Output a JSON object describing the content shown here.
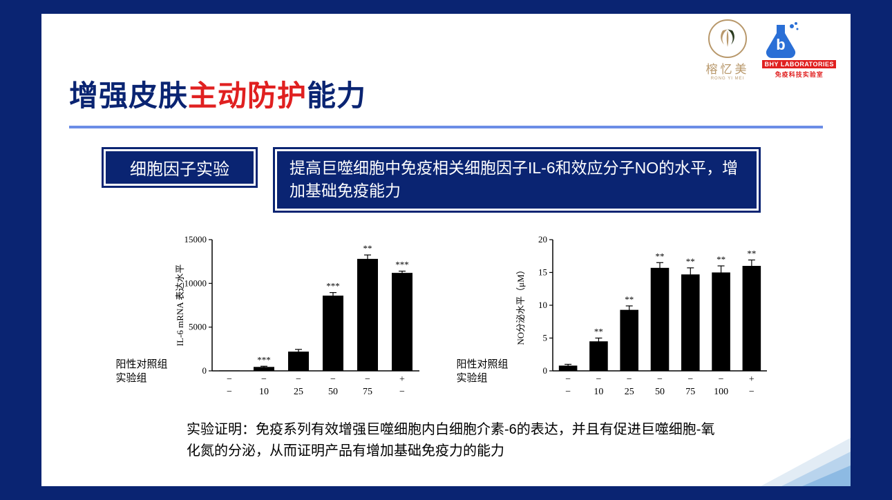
{
  "logos": {
    "rym": {
      "name": "榕忆美",
      "pinyin": "RONG YI MEI"
    },
    "bhy": {
      "lab": "BHY LABORATORIES",
      "sub": "免疫科技实验室"
    }
  },
  "title": {
    "part1": "增强皮肤",
    "part2": "主动防护",
    "part3": "能力"
  },
  "box_small": "细胞因子实验",
  "box_big": "提高巨噬细胞中免疫相关细胞因子IL-6和效应分子NO的水平，增加基础免疫能力",
  "chart_labels": {
    "l1": "阳性对照组",
    "l2": "实验组"
  },
  "chart1": {
    "type": "bar",
    "ylabel": "IL-6 mRNA 表达水平",
    "ylim": [
      0,
      15000
    ],
    "yticks": [
      0,
      5000,
      10000,
      15000
    ],
    "categories": [
      "−",
      "10",
      "25",
      "50",
      "75",
      "+/−"
    ],
    "row1": [
      "−",
      "−",
      "−",
      "−",
      "−",
      "+"
    ],
    "row2": [
      "−",
      "10",
      "25",
      "50",
      "75",
      "−"
    ],
    "values": [
      50,
      450,
      2200,
      8600,
      12800,
      11200
    ],
    "errors": [
      0,
      80,
      250,
      350,
      450,
      200
    ],
    "sig": [
      "",
      "***",
      "",
      "***",
      "**",
      "***"
    ],
    "bar_color": "#000000",
    "axis_color": "#000000",
    "background": "#ffffff",
    "bar_width": 0.6
  },
  "chart2": {
    "type": "bar",
    "ylabel": "NO分泌水平（μM）",
    "ylim": [
      0,
      20
    ],
    "yticks": [
      0,
      5,
      10,
      15,
      20
    ],
    "categories": [
      "−",
      "10",
      "25",
      "50",
      "75",
      "100",
      "+/−"
    ],
    "row1": [
      "−",
      "−",
      "−",
      "−",
      "−",
      "−",
      "+"
    ],
    "row2": [
      "−",
      "10",
      "25",
      "50",
      "75",
      "100",
      "−"
    ],
    "values": [
      0.8,
      4.5,
      9.3,
      15.7,
      14.7,
      15.0,
      16.0
    ],
    "errors": [
      0.2,
      0.5,
      0.6,
      0.8,
      1.0,
      1.0,
      0.9
    ],
    "sig": [
      "",
      "**",
      "**",
      "**",
      "**",
      "**",
      "**"
    ],
    "bar_color": "#000000",
    "axis_color": "#000000",
    "background": "#ffffff",
    "bar_width": 0.6
  },
  "desc": "实验证明：免疫系列有效增强巨噬细胞内白细胞介素-6的表达，并且有促进巨噬细胞-氧化氮的分泌，从而证明产品有增加基础免疫力的能力",
  "accent_color": "#6b8de6",
  "slide_bg": "#ffffff",
  "outer_bg": "#0a2472",
  "title_dark": "#0a2472",
  "title_red": "#e02020"
}
